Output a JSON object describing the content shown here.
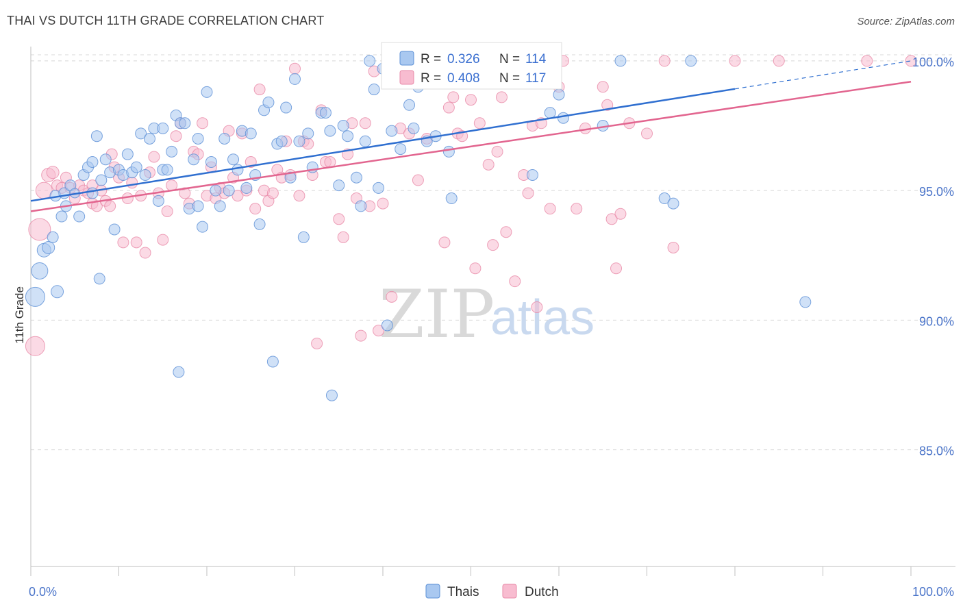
{
  "title": "THAI VS DUTCH 11TH GRADE CORRELATION CHART",
  "source": "Source: ZipAtlas.com",
  "watermark": {
    "zip": "ZIP",
    "atlas": "atlas"
  },
  "legend_top": {
    "r_label": "R =",
    "n_label": "N =",
    "rows": [
      {
        "r": "0.326",
        "n": "114"
      },
      {
        "r": "0.408",
        "n": "117"
      }
    ]
  },
  "legend_bottom": [
    "Thais",
    "Dutch"
  ],
  "colors": {
    "thais_fill": "#a9c8f0",
    "thais_stroke": "#5b8fd6",
    "thais_line": "#2f6fd0",
    "dutch_fill": "#f8bcd0",
    "dutch_stroke": "#e88aa8",
    "dutch_line": "#e2658f",
    "grid": "#d8d8d8",
    "tick_label": "#4a74c9"
  },
  "chart_data": {
    "type": "scatter",
    "title": "THAI VS DUTCH 11TH GRADE CORRELATION CHART",
    "xlabel": "",
    "ylabel": "11th Grade",
    "xlim": [
      0,
      100
    ],
    "ylim": [
      80.5,
      100.5
    ],
    "x_tick_labels": [
      "0.0%",
      "100.0%"
    ],
    "y_ticks": [
      85,
      90,
      95,
      100
    ],
    "y_tick_labels": [
      "85.0%",
      "90.0%",
      "95.0%",
      "100.0%"
    ],
    "grid": true,
    "legend_position": "top-center",
    "series": [
      {
        "name": "Thais",
        "R": 0.326,
        "N": 114,
        "trend": {
          "x0": 0,
          "y0": 94.6,
          "x1": 100,
          "y1": 100.0,
          "solid_until": 80
        },
        "points": [
          [
            0.5,
            90.9,
            14
          ],
          [
            1,
            91.9,
            12
          ],
          [
            1.5,
            92.7,
            10
          ],
          [
            2,
            92.8,
            9
          ],
          [
            2.5,
            93.2,
            8
          ],
          [
            2.8,
            94.8,
            8
          ],
          [
            3,
            91.1,
            9
          ],
          [
            3.5,
            94.0,
            8
          ],
          [
            3.8,
            94.9,
            8
          ],
          [
            4,
            94.4,
            8
          ],
          [
            4.5,
            95.2,
            8
          ],
          [
            5,
            94.9,
            7
          ],
          [
            5.5,
            94.0,
            8
          ],
          [
            6,
            95.6,
            8
          ],
          [
            6.5,
            95.9,
            8
          ],
          [
            7,
            96.1,
            8
          ],
          [
            7,
            94.9,
            8
          ],
          [
            7.5,
            97.1,
            8
          ],
          [
            7.8,
            91.6,
            8
          ],
          [
            8,
            95.4,
            8
          ],
          [
            8.5,
            96.2,
            8
          ],
          [
            9,
            95.7,
            8
          ],
          [
            9.5,
            93.5,
            8
          ],
          [
            10,
            95.8,
            8
          ],
          [
            10.5,
            95.6,
            8
          ],
          [
            11,
            96.4,
            8
          ],
          [
            11.5,
            95.7,
            8
          ],
          [
            12,
            95.9,
            8
          ],
          [
            12.5,
            97.2,
            8
          ],
          [
            13,
            95.6,
            8
          ],
          [
            13.5,
            97.0,
            8
          ],
          [
            14,
            97.4,
            8
          ],
          [
            14.5,
            94.6,
            8
          ],
          [
            15,
            97.4,
            8
          ],
          [
            15,
            95.8,
            8
          ],
          [
            15.5,
            95.8,
            8
          ],
          [
            16,
            96.5,
            8
          ],
          [
            16.5,
            97.9,
            8
          ],
          [
            16.8,
            88.0,
            8
          ],
          [
            17,
            97.6,
            8
          ],
          [
            17.5,
            97.6,
            8
          ],
          [
            18,
            94.3,
            8
          ],
          [
            18.5,
            96.2,
            8
          ],
          [
            19,
            97.0,
            8
          ],
          [
            19,
            94.4,
            8
          ],
          [
            19.5,
            93.6,
            8
          ],
          [
            20,
            98.8,
            8
          ],
          [
            20.5,
            96.1,
            8
          ],
          [
            21,
            95.0,
            8
          ],
          [
            21.5,
            94.4,
            8
          ],
          [
            22,
            97.0,
            8
          ],
          [
            22.5,
            95.0,
            8
          ],
          [
            23,
            96.2,
            8
          ],
          [
            23.5,
            95.8,
            8
          ],
          [
            24,
            97.3,
            8
          ],
          [
            24.5,
            95.1,
            8
          ],
          [
            25,
            97.2,
            8
          ],
          [
            25.5,
            95.6,
            8
          ],
          [
            26,
            93.7,
            8
          ],
          [
            26.5,
            98.1,
            8
          ],
          [
            27,
            98.4,
            8
          ],
          [
            27.5,
            88.4,
            8
          ],
          [
            28,
            96.8,
            8
          ],
          [
            28.5,
            96.9,
            8
          ],
          [
            29,
            98.2,
            8
          ],
          [
            29.5,
            95.5,
            8
          ],
          [
            30,
            99.3,
            8
          ],
          [
            30.5,
            96.9,
            8
          ],
          [
            31,
            93.2,
            8
          ],
          [
            31.5,
            97.2,
            8
          ],
          [
            32,
            95.9,
            8
          ],
          [
            33,
            98.0,
            8
          ],
          [
            33.5,
            98.0,
            8
          ],
          [
            34,
            97.3,
            8
          ],
          [
            34.2,
            87.1,
            8
          ],
          [
            35,
            95.2,
            8
          ],
          [
            35.5,
            97.5,
            8
          ],
          [
            36,
            97.1,
            8
          ],
          [
            37,
            95.5,
            8
          ],
          [
            37.5,
            94.4,
            8
          ],
          [
            38,
            96.9,
            8
          ],
          [
            38.5,
            100.0,
            8
          ],
          [
            39,
            98.9,
            8
          ],
          [
            39.5,
            95.1,
            8
          ],
          [
            40,
            99.7,
            8
          ],
          [
            40.5,
            89.8,
            8
          ],
          [
            41,
            97.3,
            8
          ],
          [
            42,
            96.6,
            8
          ],
          [
            43,
            98.3,
            8
          ],
          [
            43.5,
            97.4,
            8
          ],
          [
            44,
            99.0,
            8
          ],
          [
            45,
            96.9,
            8
          ],
          [
            46,
            97.1,
            8
          ],
          [
            47,
            100.0,
            8
          ],
          [
            47.5,
            96.5,
            8
          ],
          [
            47.8,
            94.7,
            8
          ],
          [
            53,
            100.0,
            8
          ],
          [
            56,
            100.0,
            8
          ],
          [
            57,
            95.6,
            8
          ],
          [
            59,
            98.0,
            8
          ],
          [
            60,
            98.7,
            8
          ],
          [
            60.5,
            97.8,
            8
          ],
          [
            65,
            97.5,
            8
          ],
          [
            67,
            100.0,
            8
          ],
          [
            72,
            94.7,
            8
          ],
          [
            73,
            94.5,
            8
          ],
          [
            75,
            100.0,
            8
          ],
          [
            88,
            90.7,
            8
          ]
        ]
      },
      {
        "name": "Dutch",
        "R": 0.408,
        "N": 117,
        "trend": {
          "x0": 0,
          "y0": 94.2,
          "x1": 100,
          "y1": 99.2
        },
        "points": [
          [
            0.5,
            89.0,
            14
          ],
          [
            1,
            93.5,
            16
          ],
          [
            1.5,
            95.0,
            12
          ],
          [
            2,
            95.6,
            10
          ],
          [
            2.5,
            95.7,
            9
          ],
          [
            3,
            95.2,
            8
          ],
          [
            3.5,
            95.1,
            8
          ],
          [
            4,
            95.5,
            8
          ],
          [
            4.5,
            95.1,
            8
          ],
          [
            5,
            94.7,
            8
          ],
          [
            5.5,
            95.2,
            8
          ],
          [
            6,
            95.0,
            8
          ],
          [
            6.5,
            94.9,
            8
          ],
          [
            7,
            95.2,
            8
          ],
          [
            7,
            94.5,
            8
          ],
          [
            7.5,
            94.4,
            8
          ],
          [
            8,
            95.0,
            8
          ],
          [
            8.5,
            94.6,
            8
          ],
          [
            9,
            94.4,
            8
          ],
          [
            9.2,
            96.4,
            8
          ],
          [
            9.5,
            95.9,
            8
          ],
          [
            10,
            95.5,
            8
          ],
          [
            10.5,
            93.0,
            8
          ],
          [
            11,
            94.7,
            8
          ],
          [
            11.5,
            95.3,
            8
          ],
          [
            12,
            93.0,
            8
          ],
          [
            12.5,
            94.8,
            8
          ],
          [
            13,
            92.6,
            8
          ],
          [
            13.5,
            95.7,
            8
          ],
          [
            14,
            96.3,
            8
          ],
          [
            14.5,
            94.9,
            8
          ],
          [
            15,
            93.1,
            8
          ],
          [
            15.5,
            94.2,
            8
          ],
          [
            16,
            95.2,
            8
          ],
          [
            16.5,
            97.1,
            8
          ],
          [
            17,
            97.6,
            8
          ],
          [
            17.5,
            94.9,
            8
          ],
          [
            18,
            94.5,
            8
          ],
          [
            18.5,
            96.5,
            8
          ],
          [
            19,
            96.4,
            8
          ],
          [
            19.5,
            97.6,
            8
          ],
          [
            20,
            94.8,
            8
          ],
          [
            20.5,
            95.9,
            8
          ],
          [
            21,
            94.7,
            8
          ],
          [
            21.5,
            95.1,
            8
          ],
          [
            22,
            94.9,
            8
          ],
          [
            22.5,
            97.3,
            8
          ],
          [
            23,
            95.5,
            8
          ],
          [
            23.5,
            94.8,
            8
          ],
          [
            24,
            97.2,
            8
          ],
          [
            24.5,
            95.0,
            8
          ],
          [
            25,
            96.1,
            8
          ],
          [
            25.5,
            94.3,
            8
          ],
          [
            26,
            98.9,
            8
          ],
          [
            26.5,
            95.0,
            8
          ],
          [
            27,
            94.6,
            8
          ],
          [
            27.5,
            94.9,
            8
          ],
          [
            28,
            95.8,
            8
          ],
          [
            28.5,
            95.5,
            8
          ],
          [
            29,
            96.9,
            8
          ],
          [
            29.5,
            95.6,
            8
          ],
          [
            30,
            99.7,
            8
          ],
          [
            30.5,
            94.8,
            8
          ],
          [
            31,
            96.9,
            8
          ],
          [
            31.5,
            96.8,
            8
          ],
          [
            32,
            95.6,
            8
          ],
          [
            32.5,
            89.1,
            8
          ],
          [
            33,
            98.1,
            8
          ],
          [
            33.5,
            96.1,
            8
          ],
          [
            34,
            96.1,
            8
          ],
          [
            35,
            93.9,
            8
          ],
          [
            35.5,
            93.2,
            8
          ],
          [
            36,
            96.4,
            8
          ],
          [
            36.5,
            97.6,
            8
          ],
          [
            37,
            94.7,
            8
          ],
          [
            37.5,
            89.4,
            8
          ],
          [
            38,
            97.6,
            8
          ],
          [
            38.5,
            94.4,
            8
          ],
          [
            39,
            99.6,
            8
          ],
          [
            39.5,
            89.6,
            8
          ],
          [
            40,
            94.5,
            8
          ],
          [
            41,
            90.9,
            8
          ],
          [
            42,
            97.4,
            8
          ],
          [
            43,
            97.2,
            8
          ],
          [
            44,
            95.4,
            8
          ],
          [
            45,
            97.0,
            8
          ],
          [
            46,
            100.0,
            8
          ],
          [
            47,
            93.0,
            8
          ],
          [
            47.5,
            98.2,
            8
          ],
          [
            48,
            98.6,
            8
          ],
          [
            48.5,
            97.2,
            8
          ],
          [
            49,
            97.1,
            8
          ],
          [
            50,
            98.5,
            8
          ],
          [
            50.5,
            92.0,
            8
          ],
          [
            51,
            97.6,
            8
          ],
          [
            52,
            96.0,
            8
          ],
          [
            52.5,
            92.9,
            8
          ],
          [
            53,
            96.5,
            8
          ],
          [
            53.5,
            98.6,
            8
          ],
          [
            54,
            93.4,
            8
          ],
          [
            55,
            91.5,
            8
          ],
          [
            56,
            95.6,
            8
          ],
          [
            56.5,
            94.9,
            8
          ],
          [
            57,
            97.5,
            8
          ],
          [
            57.5,
            90.5,
            8
          ],
          [
            58,
            97.6,
            8
          ],
          [
            59,
            94.3,
            8
          ],
          [
            60,
            99.0,
            8
          ],
          [
            60.5,
            100.0,
            8
          ],
          [
            62,
            94.3,
            8
          ],
          [
            63,
            97.4,
            8
          ],
          [
            65,
            99.0,
            8
          ],
          [
            65.5,
            98.3,
            8
          ],
          [
            66,
            93.9,
            8
          ],
          [
            66.5,
            92.0,
            8
          ],
          [
            67,
            94.1,
            8
          ],
          [
            68,
            97.6,
            8
          ],
          [
            70,
            97.2,
            8
          ],
          [
            72,
            100.0,
            8
          ],
          [
            73,
            92.8,
            8
          ],
          [
            80,
            100.0,
            8
          ],
          [
            85,
            100.0,
            8
          ],
          [
            95,
            100.0,
            8
          ],
          [
            100,
            100.0,
            8
          ]
        ]
      }
    ]
  }
}
